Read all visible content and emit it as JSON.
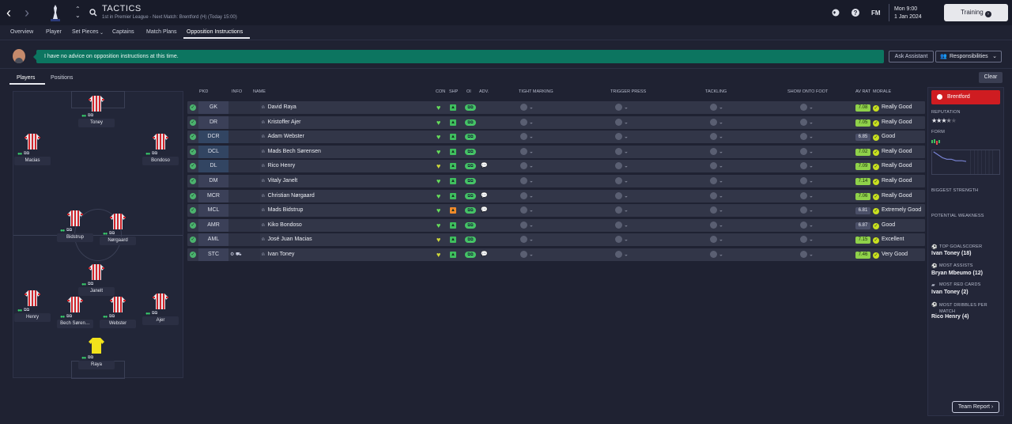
{
  "header": {
    "title": "TACTICS",
    "subtitle": "1st in Premier League - Next Match: Brentford (H) (Today 15:00)",
    "day": "Mon 9:00",
    "date": "1 Jan 2024",
    "training_label": "Training",
    "fm_label": "FM"
  },
  "tabs": [
    "Overview",
    "Player",
    "Set Pieces",
    "Captains",
    "Match Plans",
    "Opposition Instructions"
  ],
  "advice": {
    "text": "I have no advice on opposition instructions at this time.",
    "ask_label": "Ask Assistant",
    "resp_label": "Responsibilities"
  },
  "subtabs": [
    "Players",
    "Positions"
  ],
  "clear_label": "Clear",
  "pitch": {
    "players": [
      {
        "name": "Toney"
      },
      {
        "name": "Macias"
      },
      {
        "name": "Bondoso"
      },
      {
        "name": "Bidstrup"
      },
      {
        "name": "Nørgaard"
      },
      {
        "name": "Janelt"
      },
      {
        "name": "Henry"
      },
      {
        "name": "Bech Søren…"
      },
      {
        "name": "Webster"
      },
      {
        "name": "Ajer"
      },
      {
        "name": "Raya"
      }
    ]
  },
  "columns": {
    "pkd": "PKD",
    "info": "INFO",
    "name": "NAME",
    "con": "CON",
    "shp": "SHP",
    "oi": "OI",
    "adv": "ADV.",
    "tight": "TIGHT MARKING",
    "trigger": "TRIGGER PRESS",
    "tackling": "TACKLING",
    "foot": "SHOW ONTO FOOT",
    "avrat": "AV RAT",
    "morale": "MORALE"
  },
  "rows": [
    {
      "pos": "GK",
      "name": "David Raya",
      "rating": "7.08",
      "morale": "Really Good"
    },
    {
      "pos": "DR",
      "name": "Kristoffer Ajer",
      "rating": "7.05",
      "morale": "Really Good"
    },
    {
      "pos": "DCR",
      "name": "Adam Webster",
      "rating": "6.85",
      "morale": "Good"
    },
    {
      "pos": "DCL",
      "name": "Mads Bech Sørensen",
      "rating": "7.02",
      "morale": "Really Good"
    },
    {
      "pos": "DL",
      "name": "Rico Henry",
      "rating": "7.09",
      "morale": "Really Good"
    },
    {
      "pos": "DM",
      "name": "Vitaly Janelt",
      "rating": "7.14",
      "morale": "Really Good"
    },
    {
      "pos": "MCR",
      "name": "Christian Nørgaard",
      "rating": "7.06",
      "morale": "Really Good"
    },
    {
      "pos": "MCL",
      "name": "Mads Bidstrup",
      "rating": "6.81",
      "morale": "Extremely Good"
    },
    {
      "pos": "AMR",
      "name": "Kiko Bondoso",
      "rating": "6.87",
      "morale": "Good"
    },
    {
      "pos": "AML",
      "name": "José Juan Macias",
      "rating": "7.15",
      "morale": "Excellent"
    },
    {
      "pos": "STC",
      "name": "Ivan Toney",
      "rating": "7.46",
      "morale": "Very Good"
    }
  ],
  "side": {
    "club": "Brentford",
    "reputation_label": "REPUTATION",
    "form_label": "FORM",
    "strength_label": "BIGGEST STRENGTH",
    "weakness_label": "POTENTIAL WEAKNESS",
    "top_scorer_label": "TOP GOALSCORER",
    "top_scorer": "Ivan Toney (18)",
    "assists_label": "MOST ASSISTS",
    "assists": "Bryan Mbeumo (12)",
    "red_label": "MOST RED CARDS",
    "red": "Ivan Toney (2)",
    "dribbles_label": "MOST DRIBBLES PER MATCH",
    "dribbles": "Rico Henry (4)",
    "reputation_stars": 3.5,
    "report_label": "Team Report"
  }
}
